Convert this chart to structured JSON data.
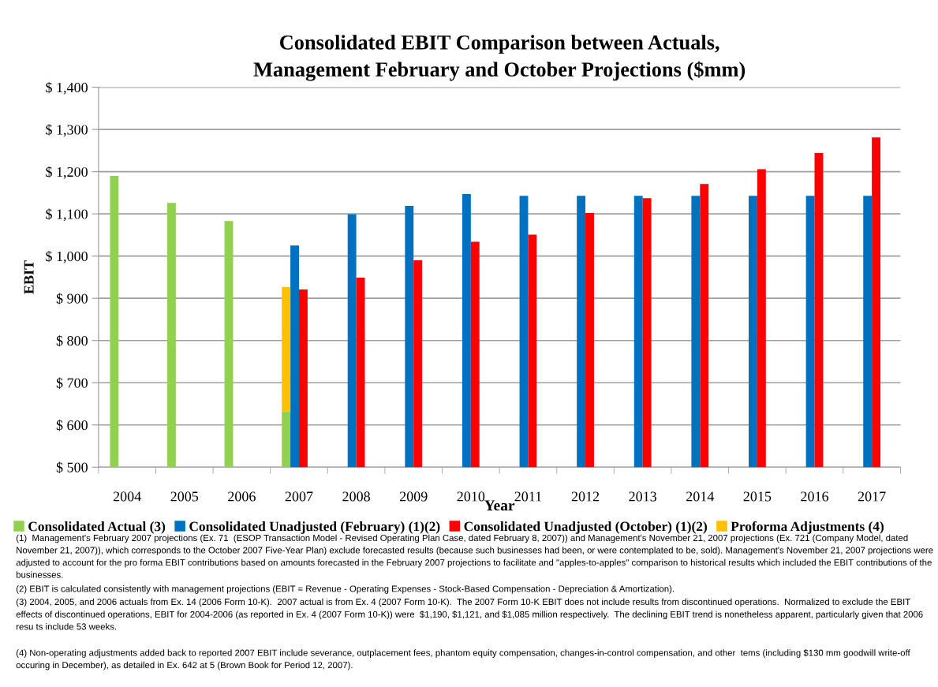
{
  "chart_data": {
    "type": "bar",
    "title": "Consolidated EBIT Comparison between Actuals,\nManagement February and October Projections ($mm)",
    "xlabel": "Year",
    "ylabel": "EBIT",
    "categories": [
      "2004",
      "2005",
      "2006",
      "2007",
      "2008",
      "2009",
      "2010",
      "2011",
      "2012",
      "2013",
      "2014",
      "2015",
      "2016",
      "2017"
    ],
    "series": [
      {
        "name": "Consolidated Actual (3)",
        "color": "#92d050",
        "values": [
          1190,
          1126,
          1083,
          632,
          null,
          null,
          null,
          null,
          null,
          null,
          null,
          null,
          null,
          null
        ]
      },
      {
        "name": "Consolidated Unadjusted (February) (1)(2)",
        "color": "#0070c0",
        "values": [
          null,
          null,
          null,
          1025,
          1099,
          1119,
          1147,
          1143,
          1143,
          1143,
          1143,
          1143,
          1143,
          1143
        ]
      },
      {
        "name": "Consolidated Unadjusted (October) (1)(2)",
        "color": "#ff0000",
        "values": [
          null,
          null,
          null,
          921,
          949,
          990,
          1034,
          1051,
          1102,
          1137,
          1171,
          1206,
          1244,
          1281
        ]
      },
      {
        "name": "Proforma Adjustments (4)",
        "color": "#ffc000",
        "base": [
          null,
          null,
          null,
          632,
          null,
          null,
          null,
          null,
          null,
          null,
          null,
          null,
          null,
          null
        ],
        "values": [
          null,
          null,
          null,
          295,
          null,
          null,
          null,
          null,
          null,
          null,
          null,
          null,
          null,
          null
        ]
      }
    ],
    "ylim": [
      500,
      1400
    ],
    "yticks": [
      {
        "value": 500,
        "label": "$ 500"
      },
      {
        "value": 600,
        "label": "$ 600"
      },
      {
        "value": 700,
        "label": "$ 700"
      },
      {
        "value": 800,
        "label": "$ 800"
      },
      {
        "value": 900,
        "label": "$ 900"
      },
      {
        "value": 1000,
        "label": "$ 1,000"
      },
      {
        "value": 1100,
        "label": "$ 1,100"
      },
      {
        "value": 1200,
        "label": "$ 1,200"
      },
      {
        "value": 1300,
        "label": "$ 1,300"
      },
      {
        "value": 1400,
        "label": "$ 1,400"
      }
    ],
    "grid": "y",
    "legend": "bottom",
    "annotations": [
      "(1)  Management's February 2007 projections (Ex. 71  (ESOP Transaction Model - Revised Operating Plan Case, dated February 8, 2007)) and Management's November 21, 2007 projections (Ex. 721 (Company Model, dated November 21, 2007)), which corresponds to the October 2007 Five-Year Plan) exclude forecasted results (because such businesses had been, or were contemplated to be, sold). Management's November 21, 2007 projections were adjusted to account for the pro forma EBIT contributions based on amounts forecasted in the February 2007 projections to facilitate and \"apples-to-apples\" comparison to historical results which included the EBIT contributions of the businesses.",
      "(2) EBIT is calculated consistently with management projections (EBIT = Revenue - Operating Expenses - Stock-Based Compensation - Depreciation & Amortization).",
      "(3) 2004, 2005, and 2006 actuals from Ex. 14 (2006 Form 10-K).  2007 actual is from Ex. 4 (2007 Form 10-K).  The 2007 Form 10-K EBIT does not include results from discontinued operations.  Normalized to exclude the EBIT effects of discontinued operations, EBIT for 2004-2006 (as reported in Ex. 4 (2007 Form 10-K)) were  $1,190, $1,121, and $1,085 million respectively.  The declining EBIT trend is nonetheless apparent, particularly given that 2006 resu ts include 53 weeks.",
      "(4) Non-operating adjustments added back to reported 2007 EBIT include severance, outplacement fees, phantom equity compensation, changes-in-control compensation, and other  tems (including $130 mm goodwill write-off occuring in December), as detailed in Ex. 642 at 5 (Brown Book for Period 12, 2007)."
    ]
  }
}
